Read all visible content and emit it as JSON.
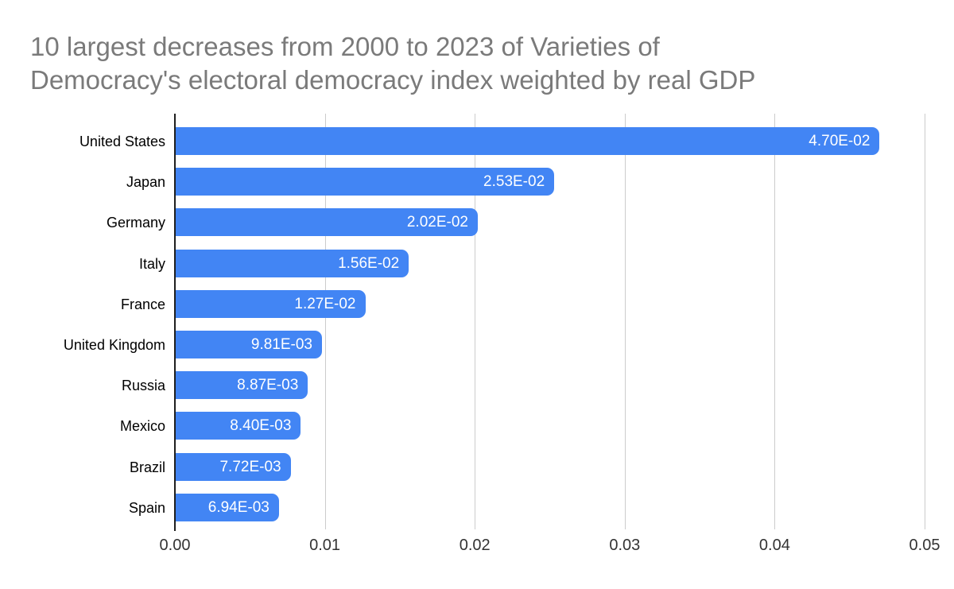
{
  "title": {
    "lines": [
      "10 largest decreases from 2000 to 2023 of Varieties of",
      "Democracy's electoral democracy index weighted by real GDP"
    ]
  },
  "chart_data": {
    "type": "bar",
    "orientation": "horizontal",
    "title": "10 largest decreases from 2000 to 2023 of Varieties of Democracy's electoral democracy index weighted by real GDP",
    "categories": [
      "United States",
      "Japan",
      "Germany",
      "Italy",
      "France",
      "United Kingdom",
      "Russia",
      "Mexico",
      "Brazil",
      "Spain"
    ],
    "values": [
      0.047,
      0.0253,
      0.0202,
      0.0156,
      0.0127,
      0.00981,
      0.00887,
      0.0084,
      0.00772,
      0.00694
    ],
    "value_labels": [
      "4.70E-02",
      "2.53E-02",
      "2.02E-02",
      "1.56E-02",
      "1.27E-02",
      "9.81E-03",
      "8.87E-03",
      "8.40E-03",
      "7.72E-03",
      "6.94E-03"
    ],
    "xlabel": "",
    "ylabel": "",
    "xlim": [
      0,
      0.05
    ],
    "x_tick_values": [
      0,
      0.01,
      0.02,
      0.03,
      0.04,
      0.05
    ],
    "x_tick_labels": [
      "0.00",
      "0.01",
      "0.02",
      "0.03",
      "0.04",
      "0.05"
    ],
    "grid": true,
    "legend": "none",
    "colors": {
      "bar": "#4285f4",
      "bar_label": "#ffffff",
      "grid": "#cccccc",
      "axis_baseline": "#1f1f1f",
      "title": "#7a7a7a",
      "tick_label": "#333333",
      "category_label": "#000000",
      "background": "#ffffff"
    }
  }
}
